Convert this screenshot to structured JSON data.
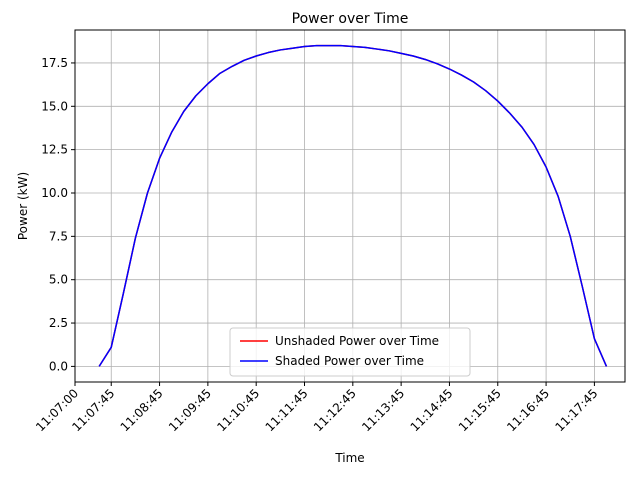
{
  "chart_data": {
    "type": "line",
    "title": "Power over Time",
    "xlabel": "Time",
    "ylabel": "Power (kW)",
    "x_unit": "seconds",
    "xlim": [
      "11:07:00",
      "11:18:23"
    ],
    "ylim": [
      -0.9,
      19.4
    ],
    "grid": true,
    "legend_position": "lower-center",
    "x_ticks": [
      "11:07:00",
      "11:07:45",
      "11:08:45",
      "11:09:45",
      "11:10:45",
      "11:11:45",
      "11:12:45",
      "11:13:45",
      "11:14:45",
      "11:15:45",
      "11:16:45",
      "11:17:45"
    ],
    "y_ticks": [
      "0.0",
      "2.5",
      "5.0",
      "7.5",
      "10.0",
      "12.5",
      "15.0",
      "17.5"
    ],
    "x": [
      "11:07:30",
      "11:07:45",
      "11:08:00",
      "11:08:15",
      "11:08:30",
      "11:08:45",
      "11:09:00",
      "11:09:15",
      "11:09:30",
      "11:09:45",
      "11:10:00",
      "11:10:15",
      "11:10:30",
      "11:10:45",
      "11:11:00",
      "11:11:15",
      "11:11:30",
      "11:11:45",
      "11:12:00",
      "11:12:15",
      "11:12:30",
      "11:12:45",
      "11:13:00",
      "11:13:15",
      "11:13:30",
      "11:13:45",
      "11:14:00",
      "11:14:15",
      "11:14:30",
      "11:14:45",
      "11:15:00",
      "11:15:15",
      "11:15:30",
      "11:15:45",
      "11:16:00",
      "11:16:15",
      "11:16:30",
      "11:16:45",
      "11:17:00",
      "11:17:15",
      "11:17:30",
      "11:17:45",
      "11:18:00"
    ],
    "series": [
      {
        "name": "Unshaded Power over Time",
        "color": "#ff0000",
        "values": [
          0.0,
          1.1,
          4.2,
          7.4,
          10.0,
          12.0,
          13.5,
          14.7,
          15.6,
          16.3,
          16.9,
          17.3,
          17.65,
          17.9,
          18.1,
          18.25,
          18.35,
          18.45,
          18.5,
          18.5,
          18.5,
          18.45,
          18.4,
          18.3,
          18.2,
          18.05,
          17.9,
          17.7,
          17.45,
          17.15,
          16.8,
          16.4,
          15.9,
          15.3,
          14.6,
          13.8,
          12.8,
          11.5,
          9.8,
          7.5,
          4.6,
          1.6,
          0.0
        ]
      },
      {
        "name": "Shaded Power over Time",
        "color": "#0000ff",
        "values": [
          0.0,
          1.1,
          4.2,
          7.4,
          10.0,
          12.0,
          13.5,
          14.7,
          15.6,
          16.3,
          16.9,
          17.3,
          17.65,
          17.9,
          18.1,
          18.25,
          18.35,
          18.45,
          18.5,
          18.5,
          18.5,
          18.45,
          18.4,
          18.3,
          18.2,
          18.05,
          17.9,
          17.7,
          17.45,
          17.15,
          16.8,
          16.4,
          15.9,
          15.3,
          14.6,
          13.8,
          12.8,
          11.5,
          9.8,
          7.5,
          4.6,
          1.6,
          0.0
        ]
      }
    ]
  }
}
